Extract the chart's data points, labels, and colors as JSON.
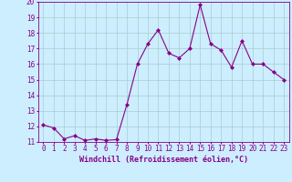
{
  "x": [
    0,
    1,
    2,
    3,
    4,
    5,
    6,
    7,
    8,
    9,
    10,
    11,
    12,
    13,
    14,
    15,
    16,
    17,
    18,
    19,
    20,
    21,
    22,
    23
  ],
  "y": [
    12.1,
    11.9,
    11.2,
    11.4,
    11.1,
    11.2,
    11.1,
    11.15,
    13.4,
    16.0,
    17.3,
    18.2,
    16.7,
    16.4,
    17.0,
    19.8,
    17.3,
    16.9,
    15.8,
    17.5,
    16.0,
    16.0,
    15.5,
    15.0
  ],
  "line_color": "#880088",
  "marker": "D",
  "marker_size": 2.0,
  "bg_color": "#cceeff",
  "grid_color": "#aacccc",
  "xlabel": "Windchill (Refroidissement éolien,°C)",
  "ylim": [
    11,
    20
  ],
  "yticks": [
    11,
    12,
    13,
    14,
    15,
    16,
    17,
    18,
    19,
    20
  ],
  "xticks": [
    0,
    1,
    2,
    3,
    4,
    5,
    6,
    7,
    8,
    9,
    10,
    11,
    12,
    13,
    14,
    15,
    16,
    17,
    18,
    19,
    20,
    21,
    22,
    23
  ],
  "label_fontsize": 6.0,
  "tick_fontsize": 5.5
}
